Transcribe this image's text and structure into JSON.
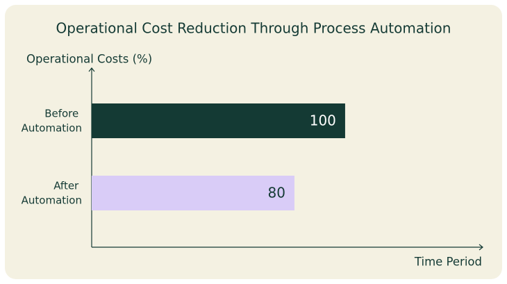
{
  "chart_data": {
    "type": "bar",
    "orientation": "horizontal",
    "title": "Operational Cost Reduction Through Process Automation",
    "y_label": "Operational Costs  (%)",
    "x_label": "Time Period",
    "categories": [
      "Before Automation",
      "After Automation"
    ],
    "values": [
      100,
      80
    ],
    "colors": [
      "#143a34",
      "#d9ccf7"
    ],
    "xlim": [
      0,
      154
    ]
  }
}
